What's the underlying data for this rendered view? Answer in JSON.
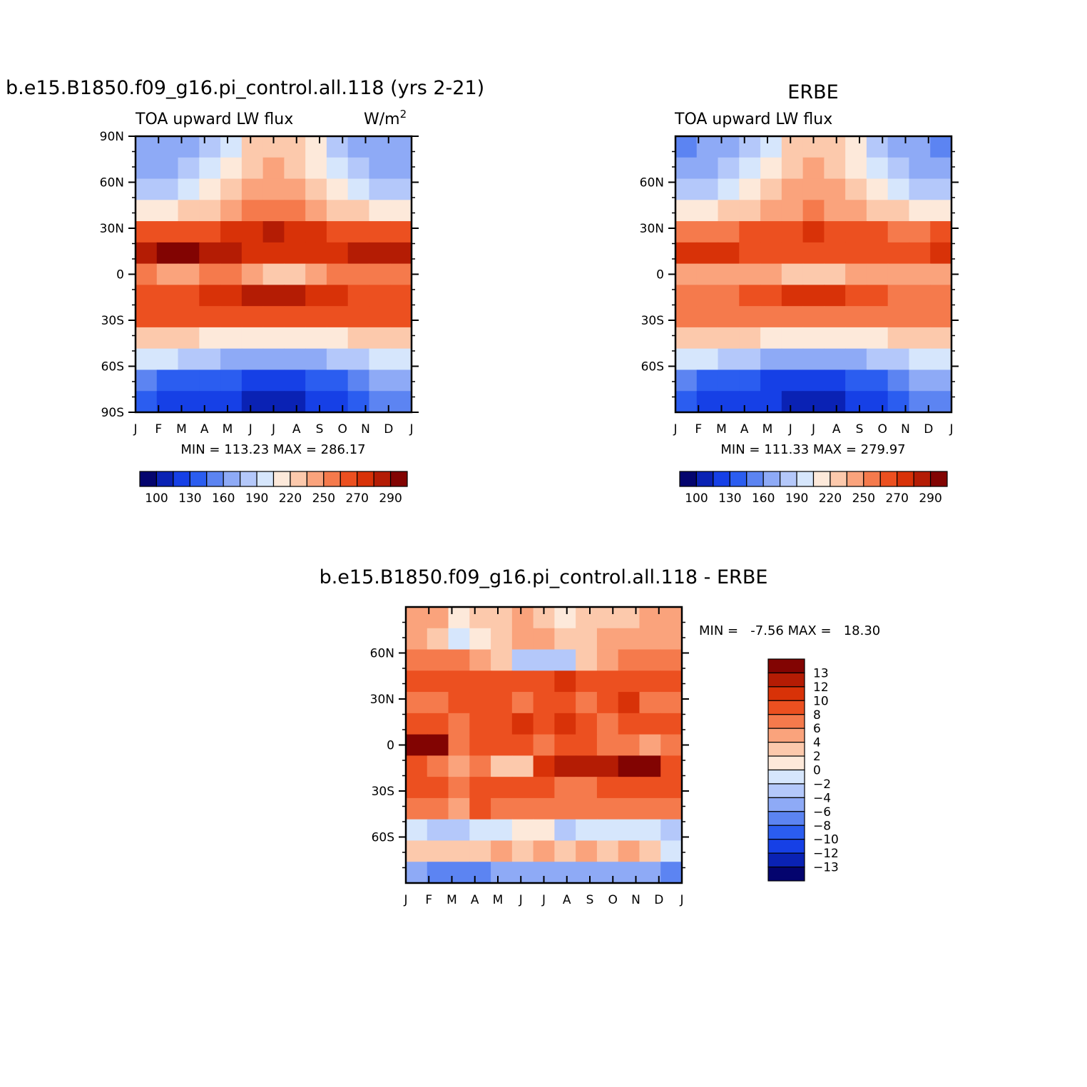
{
  "chart_data": [
    {
      "type": "heatmap",
      "title": "b.e15.B1850.f09_g16.pi_control.all.118 (yrs 2-21)",
      "subtitle_left": "TOA upward LW flux",
      "units": "W/m",
      "units_sup": "2",
      "x_ticks": [
        "J",
        "F",
        "M",
        "A",
        "M",
        "J",
        "J",
        "A",
        "S",
        "O",
        "N",
        "D",
        "J"
      ],
      "y_ticks": [
        "90N",
        "60N",
        "30N",
        "0",
        "30S",
        "60S",
        "90S"
      ],
      "ylim": [
        -90,
        90
      ],
      "stats": "MIN = 113.23 MAX = 286.17",
      "legend": {
        "orientation": "horizontal",
        "labels": [
          "100",
          "130",
          "160",
          "190",
          "220",
          "250",
          "270",
          "290"
        ],
        "colors": [
          "#04046e",
          "#0a22b4",
          "#1640e6",
          "#2b5df0",
          "#5c84f2",
          "#8eaaf6",
          "#b4c8fa",
          "#d6e6fc",
          "#fde9da",
          "#fcc9ac",
          "#faa37c",
          "#f57a4c",
          "#ec5020",
          "#d83208",
          "#b41c04",
          "#820402"
        ]
      },
      "grid": {
        "months": [
          "J",
          "F",
          "M",
          "A",
          "M",
          "J",
          "J",
          "A",
          "S",
          "O",
          "N",
          "D",
          "J"
        ],
        "lat": [
          "90N",
          "75N",
          "60N",
          "45N",
          "30N",
          "15N",
          "0",
          "15S",
          "30S",
          "45S",
          "60S",
          "75S",
          "90S"
        ],
        "rows": [
          [
            5,
            5,
            5,
            6,
            7,
            9,
            9,
            9,
            8,
            6,
            5,
            5,
            5
          ],
          [
            5,
            5,
            6,
            7,
            8,
            9,
            10,
            9,
            8,
            7,
            6,
            5,
            5
          ],
          [
            6,
            6,
            7,
            8,
            9,
            10,
            10,
            10,
            9,
            8,
            7,
            6,
            6
          ],
          [
            8,
            8,
            9,
            9,
            10,
            11,
            11,
            11,
            10,
            9,
            9,
            8,
            8
          ],
          [
            12,
            12,
            12,
            12,
            13,
            13,
            14,
            13,
            13,
            12,
            12,
            12,
            12
          ],
          [
            14,
            15,
            15,
            14,
            14,
            13,
            13,
            13,
            13,
            13,
            14,
            14,
            14
          ],
          [
            11,
            10,
            10,
            11,
            11,
            10,
            9,
            9,
            10,
            11,
            11,
            11,
            11
          ],
          [
            12,
            12,
            12,
            13,
            13,
            14,
            14,
            14,
            13,
            13,
            12,
            12,
            12
          ],
          [
            12,
            12,
            12,
            12,
            12,
            12,
            12,
            12,
            12,
            12,
            12,
            12,
            12
          ],
          [
            9,
            9,
            9,
            8,
            8,
            8,
            8,
            8,
            8,
            8,
            9,
            9,
            9
          ],
          [
            7,
            7,
            6,
            6,
            5,
            5,
            5,
            5,
            5,
            6,
            6,
            7,
            7
          ],
          [
            4,
            3,
            3,
            3,
            3,
            2,
            2,
            2,
            3,
            3,
            4,
            5,
            5
          ],
          [
            3,
            2,
            2,
            2,
            2,
            1,
            1,
            1,
            2,
            2,
            3,
            4,
            4
          ]
        ]
      }
    },
    {
      "type": "heatmap",
      "title": "ERBE",
      "subtitle_left": "TOA upward LW flux",
      "x_ticks": [
        "J",
        "F",
        "M",
        "A",
        "M",
        "J",
        "J",
        "A",
        "S",
        "O",
        "N",
        "D",
        "J"
      ],
      "y_ticks": [
        "60N",
        "30N",
        "0",
        "30S",
        "60S"
      ],
      "ylim": [
        -90,
        90
      ],
      "stats": "MIN = 111.33 MAX = 279.97",
      "legend": {
        "orientation": "horizontal",
        "labels": [
          "100",
          "130",
          "160",
          "190",
          "220",
          "250",
          "270",
          "290"
        ],
        "colors": [
          "#04046e",
          "#0a22b4",
          "#1640e6",
          "#2b5df0",
          "#5c84f2",
          "#8eaaf6",
          "#b4c8fa",
          "#d6e6fc",
          "#fde9da",
          "#fcc9ac",
          "#faa37c",
          "#f57a4c",
          "#ec5020",
          "#d83208",
          "#b41c04",
          "#820402"
        ]
      },
      "grid": {
        "rows": [
          [
            4,
            5,
            5,
            6,
            7,
            9,
            9,
            9,
            8,
            6,
            5,
            5,
            4
          ],
          [
            5,
            5,
            6,
            7,
            8,
            9,
            10,
            9,
            8,
            7,
            6,
            5,
            5
          ],
          [
            6,
            6,
            7,
            8,
            9,
            10,
            10,
            10,
            9,
            8,
            7,
            6,
            6
          ],
          [
            8,
            8,
            9,
            9,
            10,
            10,
            11,
            10,
            10,
            9,
            9,
            8,
            8
          ],
          [
            11,
            11,
            11,
            12,
            12,
            12,
            13,
            12,
            12,
            12,
            11,
            11,
            12
          ],
          [
            13,
            13,
            13,
            12,
            12,
            12,
            12,
            12,
            12,
            12,
            12,
            12,
            13
          ],
          [
            10,
            10,
            10,
            10,
            10,
            9,
            9,
            9,
            10,
            10,
            10,
            10,
            10
          ],
          [
            11,
            11,
            11,
            12,
            12,
            13,
            13,
            13,
            12,
            12,
            11,
            11,
            11
          ],
          [
            11,
            11,
            11,
            11,
            11,
            11,
            11,
            11,
            11,
            11,
            11,
            11,
            11
          ],
          [
            9,
            9,
            9,
            9,
            8,
            8,
            8,
            8,
            8,
            8,
            9,
            9,
            9
          ],
          [
            7,
            7,
            6,
            6,
            5,
            5,
            5,
            5,
            5,
            6,
            6,
            7,
            7
          ],
          [
            4,
            3,
            3,
            3,
            2,
            2,
            2,
            2,
            3,
            3,
            4,
            5,
            5
          ],
          [
            3,
            2,
            2,
            2,
            2,
            1,
            1,
            1,
            2,
            2,
            3,
            4,
            4
          ]
        ]
      }
    },
    {
      "type": "heatmap",
      "title": "b.e15.B1850.f09_g16.pi_control.all.118 - ERBE",
      "x_ticks": [
        "J",
        "F",
        "M",
        "A",
        "M",
        "J",
        "J",
        "A",
        "S",
        "O",
        "N",
        "D",
        "J"
      ],
      "y_ticks": [
        "60N",
        "30N",
        "0",
        "30S",
        "60S"
      ],
      "ylim": [
        -90,
        90
      ],
      "stats": "MIN =   -7.56 MAX =   18.30",
      "legend": {
        "orientation": "vertical",
        "labels": [
          "13",
          "12",
          "10",
          "8",
          "6",
          "4",
          "2",
          "0",
          "-2",
          "-4",
          "-6",
          "-8",
          "-10",
          "-12",
          "-13"
        ],
        "colors": [
          "#820402",
          "#b41c04",
          "#d83208",
          "#ec5020",
          "#f57a4c",
          "#faa37c",
          "#fcc9ac",
          "#fde9da",
          "#d6e6fc",
          "#b4c8fa",
          "#8eaaf6",
          "#5c84f2",
          "#2b5df0",
          "#1640e6",
          "#0a22b4",
          "#04046e"
        ]
      },
      "grid": {
        "rows": [
          [
            5,
            5,
            7,
            6,
            6,
            5,
            6,
            7,
            6,
            6,
            6,
            5,
            5
          ],
          [
            5,
            6,
            8,
            7,
            6,
            5,
            5,
            6,
            6,
            5,
            5,
            5,
            5
          ],
          [
            4,
            4,
            4,
            5,
            6,
            9,
            9,
            9,
            6,
            5,
            4,
            4,
            4
          ],
          [
            3,
            3,
            3,
            3,
            3,
            3,
            3,
            2,
            3,
            3,
            3,
            3,
            3
          ],
          [
            4,
            4,
            3,
            3,
            3,
            4,
            3,
            3,
            4,
            3,
            2,
            4,
            4
          ],
          [
            3,
            3,
            4,
            3,
            3,
            2,
            3,
            2,
            3,
            4,
            3,
            3,
            3
          ],
          [
            0,
            0,
            4,
            3,
            3,
            3,
            4,
            3,
            3,
            4,
            4,
            5,
            4
          ],
          [
            3,
            4,
            5,
            4,
            6,
            6,
            2,
            1,
            1,
            1,
            0,
            0,
            3
          ],
          [
            3,
            3,
            4,
            3,
            3,
            3,
            3,
            4,
            4,
            3,
            3,
            3,
            3
          ],
          [
            4,
            4,
            5,
            3,
            4,
            4,
            4,
            4,
            4,
            4,
            4,
            4,
            4
          ],
          [
            8,
            9,
            9,
            8,
            8,
            7,
            7,
            9,
            8,
            8,
            8,
            8,
            9
          ],
          [
            6,
            6,
            6,
            6,
            5,
            6,
            5,
            6,
            5,
            6,
            5,
            6,
            8
          ],
          [
            10,
            11,
            11,
            11,
            10,
            10,
            10,
            10,
            10,
            10,
            10,
            10,
            11
          ]
        ]
      }
    }
  ]
}
